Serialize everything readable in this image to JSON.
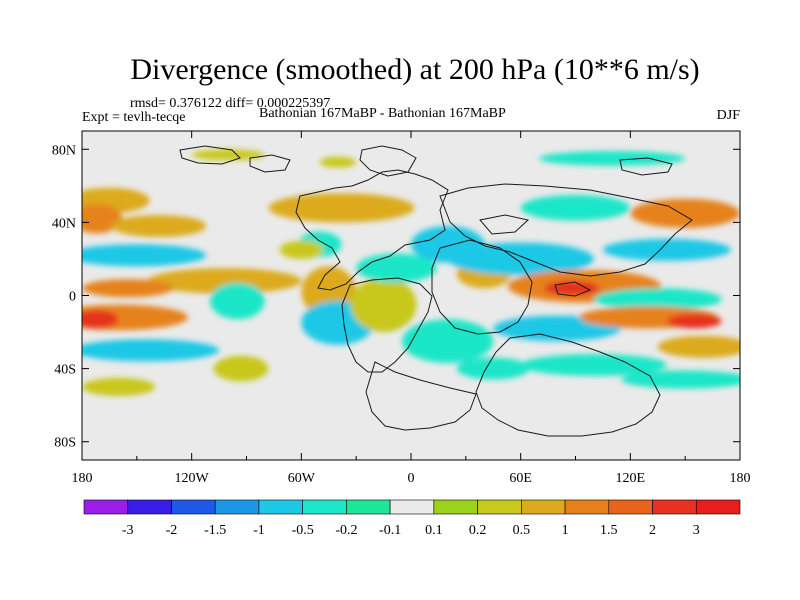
{
  "title": "Divergence (smoothed) at 200 hPa (10**6 m/s)",
  "subtitle": {
    "stats": "rmsd= 0.376122 diff= 0.000225397",
    "experiment": "Expt = tevlh-tecqe",
    "runs": "Bathonian 167MaBP - Bathonian 167MaBP",
    "season": "DJF"
  },
  "chart_data": {
    "type": "heatmap",
    "title": "Divergence (smoothed) at 200 hPa (10**6 m/s)",
    "x_ticks": [
      "180",
      "120W",
      "60W",
      "0",
      "60E",
      "120E",
      "180"
    ],
    "x_values": [
      -180,
      -120,
      -60,
      0,
      60,
      120,
      180
    ],
    "y_ticks": [
      "80N",
      "40N",
      "0",
      "40S",
      "80S"
    ],
    "y_values": [
      80,
      40,
      0,
      -40,
      -80
    ],
    "xlim": [
      -180,
      180
    ],
    "ylim": [
      -90,
      90
    ],
    "colorbar": {
      "labels": [
        "-3",
        "-2",
        "-1.5",
        "-1",
        "-0.5",
        "-0.2",
        "-0.1",
        "0.1",
        "0.2",
        "0.5",
        "1",
        "1.5",
        "2",
        "3"
      ],
      "colors": [
        "#9a1ee6",
        "#3a1ee6",
        "#1e5ae6",
        "#1e96e6",
        "#1ec8e6",
        "#1ee6c8",
        "#1ee696",
        "#eaeaea",
        "#9ad21e",
        "#c8c81e",
        "#dcaa1e",
        "#e6821e",
        "#e6641e",
        "#e6321e",
        "#e61e1e"
      ]
    },
    "features": [
      {
        "lon": -165,
        "lat": 52,
        "sx": 22,
        "sy": 7,
        "level": 0.6
      },
      {
        "lon": -172,
        "lat": 42,
        "sx": 14,
        "sy": 8,
        "level": 1.0
      },
      {
        "lon": -138,
        "lat": 38,
        "sx": 26,
        "sy": 6,
        "level": 0.6
      },
      {
        "lon": -150,
        "lat": 22,
        "sx": 38,
        "sy": 6,
        "level": -0.6
      },
      {
        "lon": -102,
        "lat": 8,
        "sx": 42,
        "sy": 7,
        "level": 0.5
      },
      {
        "lon": -155,
        "lat": 4,
        "sx": 25,
        "sy": 5,
        "level": 1.1
      },
      {
        "lon": -160,
        "lat": -12,
        "sx": 38,
        "sy": 7,
        "level": 1.3
      },
      {
        "lon": -172,
        "lat": -13,
        "sx": 12,
        "sy": 5,
        "level": 2.0
      },
      {
        "lon": -145,
        "lat": -30,
        "sx": 40,
        "sy": 6,
        "level": -0.7
      },
      {
        "lon": -160,
        "lat": -50,
        "sx": 20,
        "sy": 5,
        "level": 0.4
      },
      {
        "lon": -93,
        "lat": -40,
        "sx": 15,
        "sy": 7,
        "level": 0.3
      },
      {
        "lon": -95,
        "lat": -3,
        "sx": 15,
        "sy": 10,
        "level": -0.5
      },
      {
        "lon": -50,
        "lat": 28,
        "sx": 12,
        "sy": 7,
        "level": -0.5
      },
      {
        "lon": -60,
        "lat": 25,
        "sx": 12,
        "sy": 5,
        "level": 0.3
      },
      {
        "lon": -38,
        "lat": 48,
        "sx": 40,
        "sy": 8,
        "level": 0.5
      },
      {
        "lon": -45,
        "lat": 2,
        "sx": 15,
        "sy": 14,
        "level": 0.5
      },
      {
        "lon": -40,
        "lat": -15,
        "sx": 20,
        "sy": 12,
        "level": -0.6
      },
      {
        "lon": -15,
        "lat": -5,
        "sx": 18,
        "sy": 15,
        "level": 0.4
      },
      {
        "lon": -8,
        "lat": 15,
        "sx": 22,
        "sy": 8,
        "level": -0.5
      },
      {
        "lon": 20,
        "lat": 28,
        "sx": 20,
        "sy": 10,
        "level": -0.6
      },
      {
        "lon": 40,
        "lat": 12,
        "sx": 15,
        "sy": 8,
        "level": 0.5
      },
      {
        "lon": 60,
        "lat": 20,
        "sx": 40,
        "sy": 9,
        "level": -0.7
      },
      {
        "lon": 20,
        "lat": -25,
        "sx": 25,
        "sy": 12,
        "level": -0.5
      },
      {
        "lon": 45,
        "lat": -40,
        "sx": 20,
        "sy": 6,
        "level": -0.3
      },
      {
        "lon": 95,
        "lat": 5,
        "sx": 42,
        "sy": 9,
        "level": 1.3
      },
      {
        "lon": 88,
        "lat": 4,
        "sx": 15,
        "sy": 4,
        "level": 2.0
      },
      {
        "lon": 80,
        "lat": -18,
        "sx": 35,
        "sy": 7,
        "level": -0.6
      },
      {
        "lon": 90,
        "lat": 48,
        "sx": 30,
        "sy": 7,
        "level": -0.3
      },
      {
        "lon": 150,
        "lat": 45,
        "sx": 30,
        "sy": 8,
        "level": 1.2
      },
      {
        "lon": 140,
        "lat": 25,
        "sx": 35,
        "sy": 6,
        "level": -0.6
      },
      {
        "lon": 135,
        "lat": -2,
        "sx": 35,
        "sy": 6,
        "level": -0.5
      },
      {
        "lon": 130,
        "lat": -12,
        "sx": 38,
        "sy": 6,
        "level": 1.3
      },
      {
        "lon": 155,
        "lat": -14,
        "sx": 15,
        "sy": 4,
        "level": 2.0
      },
      {
        "lon": 100,
        "lat": -38,
        "sx": 40,
        "sy": 6,
        "level": -0.4
      },
      {
        "lon": 160,
        "lat": -28,
        "sx": 25,
        "sy": 6,
        "level": 0.5
      },
      {
        "lon": 150,
        "lat": -46,
        "sx": 35,
        "sy": 5,
        "level": -0.5
      },
      {
        "lon": 110,
        "lat": 75,
        "sx": 40,
        "sy": 4,
        "level": -0.3
      },
      {
        "lon": -100,
        "lat": 77,
        "sx": 20,
        "sy": 3,
        "level": 0.3
      },
      {
        "lon": -40,
        "lat": 73,
        "sx": 10,
        "sy": 3,
        "level": 0.3
      }
    ]
  }
}
